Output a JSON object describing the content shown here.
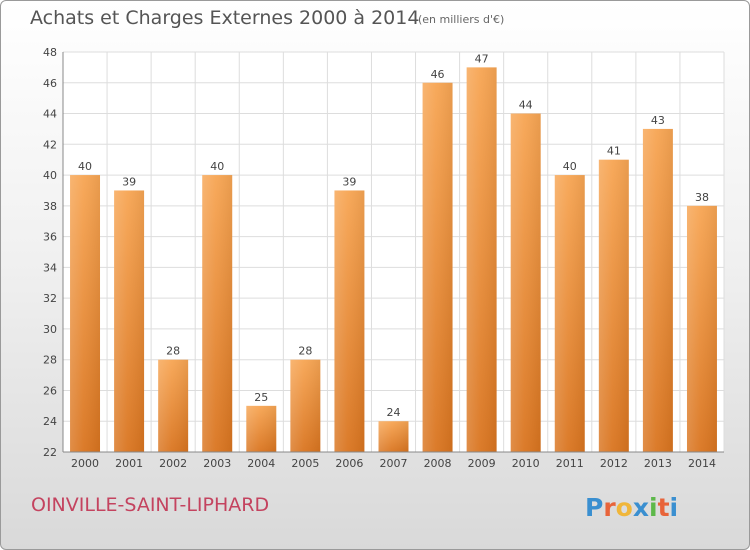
{
  "title": "Achats et Charges Externes 2000 à 2014",
  "subtitle": "(en milliers d'€)",
  "commune": "OINVILLE-SAINT-LIPHARD",
  "logo_text": "Proxiti",
  "colors": {
    "bar_top": "#f7a553",
    "bar_bottom": "#d9741f",
    "grid": "#dddddd",
    "axis_text": "#444444",
    "commune": "#c4435f"
  },
  "chart_data": {
    "type": "bar",
    "title": "Achats et Charges Externes 2000 à 2014",
    "subtitle": "(en milliers d'€)",
    "xlabel": "",
    "ylabel": "",
    "categories": [
      "2000",
      "2001",
      "2002",
      "2003",
      "2004",
      "2005",
      "2006",
      "2007",
      "2008",
      "2009",
      "2010",
      "2011",
      "2012",
      "2013",
      "2014"
    ],
    "values": [
      40,
      39,
      28,
      40,
      25,
      28,
      39,
      24,
      46,
      47,
      44,
      40,
      41,
      43,
      38
    ],
    "ylim": [
      22,
      48
    ],
    "yticks": [
      22,
      24,
      26,
      28,
      30,
      32,
      34,
      36,
      38,
      40,
      42,
      44,
      46,
      48
    ],
    "grid": true,
    "legend": "none"
  }
}
